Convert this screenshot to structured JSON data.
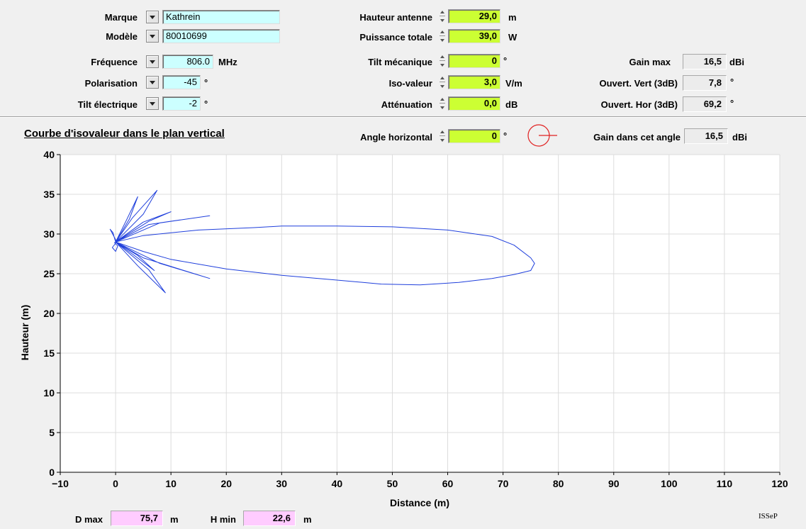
{
  "params": {
    "marque": {
      "label": "Marque",
      "value": "Kathrein"
    },
    "modele": {
      "label": "Modèle",
      "value": "80010699"
    },
    "frequence": {
      "label": "Fréquence",
      "value": "806.0",
      "unit": "MHz"
    },
    "polarisation": {
      "label": "Polarisation",
      "value": "-45",
      "unit": "°"
    },
    "tilt_electrique": {
      "label": "Tilt électrique",
      "value": "-2",
      "unit": "°"
    },
    "hauteur_antenne": {
      "label": "Hauteur antenne",
      "value": "29,0",
      "unit": "m"
    },
    "puissance_totale": {
      "label": "Puissance totale",
      "value": "39,0",
      "unit": "W"
    },
    "tilt_mecanique": {
      "label": "Tilt mécanique",
      "value": "0",
      "unit": "°"
    },
    "iso_valeur": {
      "label": "Iso-valeur",
      "value": "3,0",
      "unit": "V/m"
    },
    "attenuation": {
      "label": "Atténuation",
      "value": "0,0",
      "unit": "dB"
    },
    "gain_max": {
      "label": "Gain max",
      "value": "16,5",
      "unit": "dBi"
    },
    "ouvert_vert": {
      "label": "Ouvert. Vert (3dB)",
      "value": "7,8",
      "unit": "°"
    },
    "ouvert_hor": {
      "label": "Ouvert. Hor (3dB)",
      "value": "69,2",
      "unit": "°"
    }
  },
  "plot_header": {
    "title": "Courbe d'isovaleur dans le plan vertical",
    "angle_horizontal": {
      "label": "Angle horizontal",
      "value": "0",
      "unit": "°"
    },
    "gain_angle": {
      "label": "Gain dans cet angle",
      "value": "16,5",
      "unit": "dBi"
    }
  },
  "results": {
    "d_max": {
      "label": "D max",
      "value": "75,7",
      "unit": "m"
    },
    "h_min": {
      "label": "H min",
      "value": "22,6",
      "unit": "m"
    }
  },
  "footer_logo": "ISSeP",
  "colors": {
    "curve": "#1f3fdc",
    "indicator_circle": "#e02020",
    "green_field": "#ccff33",
    "cyan_field": "#ccffff",
    "pink_field": "#ffccff"
  },
  "chart_data": {
    "type": "line",
    "xlabel": "Distance (m)",
    "ylabel": "Hauteur (m)",
    "xlim": [
      -10,
      120
    ],
    "ylim": [
      0,
      40
    ],
    "xticks": [
      -10,
      0,
      10,
      20,
      30,
      40,
      50,
      60,
      70,
      80,
      90,
      100,
      110,
      120
    ],
    "yticks": [
      0,
      5,
      10,
      15,
      20,
      25,
      30,
      35,
      40
    ],
    "grid": true,
    "series": [
      {
        "x": [
          0,
          5,
          15,
          25,
          30,
          40,
          50,
          60,
          68,
          72,
          75,
          75.7,
          75,
          72,
          68,
          62,
          55,
          48,
          40,
          30,
          20,
          10,
          5,
          0
        ],
        "y": [
          29.0,
          29.8,
          30.5,
          30.8,
          31.0,
          31.0,
          30.9,
          30.5,
          29.7,
          28.6,
          27.0,
          26.3,
          25.4,
          24.9,
          24.4,
          23.9,
          23.6,
          23.7,
          24.2,
          24.8,
          25.6,
          26.8,
          27.8,
          29.0
        ]
      },
      {
        "x": [
          0,
          6,
          17,
          8,
          0
        ],
        "y": [
          29.0,
          31.2,
          32.3,
          31.4,
          29.0
        ]
      },
      {
        "x": [
          0,
          5,
          10,
          6,
          0
        ],
        "y": [
          29.0,
          31.5,
          32.8,
          31.6,
          29.0
        ]
      },
      {
        "x": [
          0,
          3,
          7.5,
          5,
          0
        ],
        "y": [
          29.0,
          32.0,
          35.5,
          32.5,
          29.0
        ]
      },
      {
        "x": [
          0,
          2,
          4,
          2.5,
          0
        ],
        "y": [
          29.0,
          31.8,
          34.7,
          31.9,
          29.0
        ]
      },
      {
        "x": [
          0,
          5,
          17,
          8,
          0
        ],
        "y": [
          29.0,
          27.0,
          24.4,
          26.3,
          29.0
        ]
      },
      {
        "x": [
          0,
          4,
          9,
          6,
          0
        ],
        "y": [
          29.0,
          26.0,
          22.6,
          25.5,
          29.0
        ]
      },
      {
        "x": [
          0,
          3,
          7,
          4,
          0
        ],
        "y": [
          29.0,
          27.5,
          25.4,
          27.3,
          29.0
        ]
      },
      {
        "x": [
          0,
          -0.5,
          -1,
          -0.3,
          0.2,
          -0.6,
          0,
          0.4,
          -0.2,
          0
        ],
        "y": [
          29.0,
          30.2,
          30.6,
          29.7,
          29.0,
          28.3,
          27.8,
          28.5,
          28.9,
          29.0
        ]
      }
    ]
  }
}
